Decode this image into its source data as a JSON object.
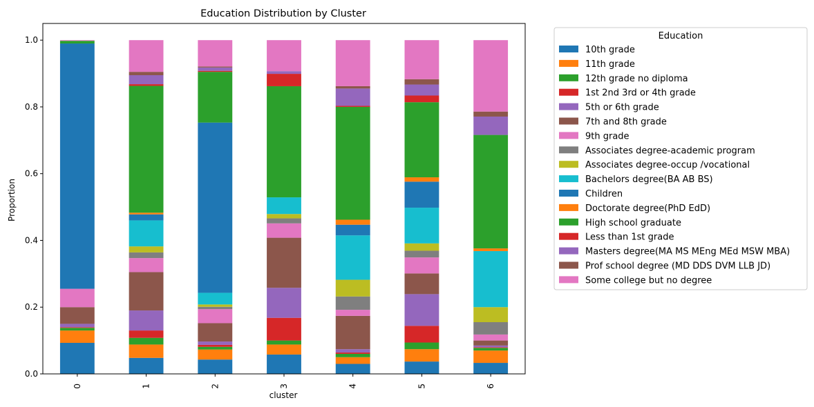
{
  "chart_data": {
    "type": "bar",
    "stacked": true,
    "title": "Education Distribution by Cluster",
    "xlabel": "cluster",
    "ylabel": "Proportion",
    "ylim": [
      0,
      1.05
    ],
    "yticks": [
      "0.0",
      "0.2",
      "0.4",
      "0.6",
      "0.8",
      "1.0"
    ],
    "categories": [
      "0",
      "1",
      "2",
      "3",
      "4",
      "5",
      "6"
    ],
    "legend": {
      "title": "Education",
      "placement": "outside-right"
    },
    "series": [
      {
        "name": "10th grade",
        "color": "#1f77b4",
        "values": [
          0.093,
          0.048,
          0.043,
          0.058,
          0.03,
          0.037,
          0.033
        ]
      },
      {
        "name": "11th grade",
        "color": "#ff7f0e",
        "values": [
          0.037,
          0.04,
          0.03,
          0.03,
          0.02,
          0.037,
          0.037
        ]
      },
      {
        "name": "12th grade no diploma",
        "color": "#2ca02c",
        "values": [
          0.008,
          0.02,
          0.008,
          0.012,
          0.01,
          0.02,
          0.008
        ]
      },
      {
        "name": "1st 2nd 3rd or 4th grade",
        "color": "#d62728",
        "values": [
          0.002,
          0.022,
          0.006,
          0.068,
          0.004,
          0.05,
          0.002
        ]
      },
      {
        "name": "5th or 6th grade",
        "color": "#9467bd",
        "values": [
          0.01,
          0.06,
          0.01,
          0.09,
          0.01,
          0.095,
          0.005
        ]
      },
      {
        "name": "7th and 8th grade",
        "color": "#8c564b",
        "values": [
          0.05,
          0.115,
          0.055,
          0.15,
          0.1,
          0.062,
          0.015
        ]
      },
      {
        "name": "9th grade",
        "color": "#e377c2",
        "values": [
          0.055,
          0.042,
          0.042,
          0.043,
          0.018,
          0.048,
          0.018
        ]
      },
      {
        "name": "Associates degree-academic program",
        "color": "#7f7f7f",
        "values": [
          0.0,
          0.017,
          0.007,
          0.015,
          0.04,
          0.02,
          0.037
        ]
      },
      {
        "name": "Associates degree-occup /vocational",
        "color": "#bcbd22",
        "values": [
          0.0,
          0.018,
          0.007,
          0.013,
          0.05,
          0.022,
          0.045
        ]
      },
      {
        "name": "Bachelors degree(BA AB BS)",
        "color": "#17becf",
        "values": [
          0.0,
          0.078,
          0.035,
          0.05,
          0.133,
          0.107,
          0.168
        ]
      },
      {
        "name": "Children",
        "color": "#1f77b4",
        "values": [
          0.735,
          0.018,
          0.51,
          0.0,
          0.032,
          0.078,
          0.0
        ]
      },
      {
        "name": "Doctorate degree(PhD EdD)",
        "color": "#ff7f0e",
        "values": [
          0.0,
          0.005,
          0.0,
          0.0,
          0.015,
          0.013,
          0.008
        ]
      },
      {
        "name": "High school graduate",
        "color": "#2ca02c",
        "values": [
          0.008,
          0.38,
          0.152,
          0.333,
          0.338,
          0.225,
          0.34
        ]
      },
      {
        "name": "Less than 1st grade",
        "color": "#d62728",
        "values": [
          0.0,
          0.005,
          0.003,
          0.037,
          0.003,
          0.02,
          0.0
        ]
      },
      {
        "name": "Masters degree(MA MS MEng MEd MSW MBA)",
        "color": "#9467bd",
        "values": [
          0.0,
          0.027,
          0.01,
          0.008,
          0.052,
          0.033,
          0.055
        ]
      },
      {
        "name": "Prof school degree (MD DDS DVM LLB JD)",
        "color": "#8c564b",
        "values": [
          0.0,
          0.01,
          0.003,
          0.0,
          0.007,
          0.016,
          0.015
        ]
      },
      {
        "name": "Some college but no degree",
        "color": "#e377c2",
        "values": [
          0.002,
          0.095,
          0.079,
          0.093,
          0.138,
          0.117,
          0.214
        ]
      }
    ]
  }
}
